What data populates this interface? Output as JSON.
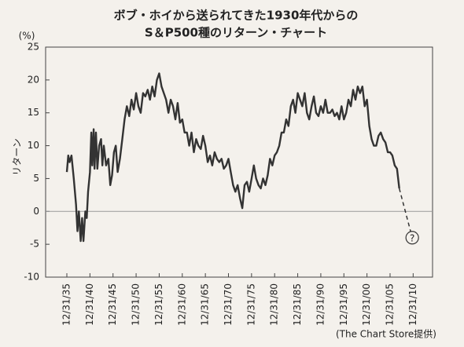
{
  "chart_data": {
    "type": "line",
    "title": "ボブ・ホイから送られてきた1930年代からの",
    "subtitle": "S＆P500種のリターン・チャート",
    "y_unit": "(%)",
    "y_label": "リターン",
    "source": "(The Chart Store提供)",
    "xlim": [
      1931.4,
      2015.2
    ],
    "ylim": [
      -10,
      25
    ],
    "yticks": [
      -10,
      -5,
      0,
      5,
      10,
      15,
      20,
      25
    ],
    "xticks": [
      {
        "value": 1936,
        "label": "12/31/35"
      },
      {
        "value": 1941,
        "label": "12/31/40"
      },
      {
        "value": 1946,
        "label": "12/31/45"
      },
      {
        "value": 1951,
        "label": "12/31/50"
      },
      {
        "value": 1956,
        "label": "12/31/55"
      },
      {
        "value": 1961,
        "label": "12/31/60"
      },
      {
        "value": 1966,
        "label": "12/31/65"
      },
      {
        "value": 1971,
        "label": "12/31/70"
      },
      {
        "value": 1976,
        "label": "12/31/75"
      },
      {
        "value": 1981,
        "label": "12/31/80"
      },
      {
        "value": 1986,
        "label": "12/31/85"
      },
      {
        "value": 1991,
        "label": "12/31/90"
      },
      {
        "value": 1996,
        "label": "12/31/95"
      },
      {
        "value": 2001,
        "label": "12/31/00"
      },
      {
        "value": 2006,
        "label": "12/31/05"
      },
      {
        "value": 2011,
        "label": "12/31/10"
      }
    ],
    "zero_line": true,
    "series": [
      {
        "color": "#333333",
        "dashed": false,
        "x": [
          1936,
          1936.3,
          1936.6,
          1937,
          1937.5,
          1938,
          1938.3,
          1938.6,
          1939,
          1939.3,
          1939.6,
          1940,
          1940.3,
          1940.6,
          1941,
          1941.3,
          1941.5,
          1941.8,
          1942,
          1942.3,
          1942.6,
          1943,
          1943.4,
          1943.7,
          1944,
          1944.5,
          1945,
          1945.4,
          1945.8,
          1946.2,
          1946.6,
          1947,
          1947.5,
          1948,
          1948.5,
          1949,
          1949.5,
          1950,
          1950.5,
          1951,
          1951.5,
          1952,
          1952.5,
          1953,
          1953.5,
          1954,
          1954.5,
          1955,
          1955.5,
          1956,
          1956.5,
          1957,
          1957.5,
          1958,
          1958.5,
          1959,
          1959.5,
          1960,
          1960.5,
          1961,
          1961.5,
          1962,
          1962.5,
          1963,
          1963.5,
          1964,
          1964.5,
          1965,
          1965.5,
          1966,
          1966.5,
          1967,
          1967.5,
          1968,
          1968.5,
          1969,
          1969.5,
          1970,
          1970.5,
          1971,
          1971.5,
          1972,
          1972.5,
          1973,
          1973.5,
          1974,
          1974.5,
          1975,
          1975.5,
          1976,
          1976.5,
          1977,
          1977.5,
          1978,
          1978.5,
          1979,
          1979.5,
          1980,
          1980.5,
          1981,
          1981.5,
          1982,
          1982.5,
          1983,
          1983.5,
          1984,
          1984.5,
          1985,
          1985.5,
          1986,
          1986.5,
          1987,
          1987.5,
          1988,
          1988.5,
          1989,
          1989.5,
          1990,
          1990.5,
          1991,
          1991.5,
          1992,
          1992.5,
          1993,
          1993.5,
          1994,
          1994.5,
          1995,
          1995.5,
          1996,
          1996.5,
          1997,
          1997.5,
          1998,
          1998.5,
          1999,
          1999.5,
          2000,
          2000.5,
          2001,
          2001.5,
          2002,
          2002.5,
          2003,
          2003.5,
          2004,
          2004.5,
          2005,
          2005.5,
          2006,
          2006.5,
          2007,
          2007.5,
          2008
        ],
        "values": [
          6,
          8.5,
          7.5,
          8.5,
          5,
          1,
          -3,
          0,
          -4.5,
          -1,
          -4.5,
          0,
          -1,
          3,
          6,
          12,
          7,
          12.5,
          6.5,
          12,
          6.5,
          10,
          11,
          7,
          10,
          7,
          8,
          4,
          5.5,
          9,
          10,
          6,
          8,
          11,
          14,
          16,
          14.5,
          17,
          15.5,
          18,
          16,
          15,
          18,
          17.5,
          18.5,
          17,
          19,
          17.5,
          20,
          21,
          19,
          18,
          17,
          15,
          17,
          16,
          14,
          16.5,
          13.5,
          14,
          12,
          12,
          10,
          12,
          9,
          11,
          10,
          9.5,
          11.5,
          10,
          7.5,
          8.5,
          7,
          9,
          8,
          7.5,
          8,
          6.5,
          7,
          8,
          6,
          4,
          3,
          4,
          2,
          0.5,
          4,
          4.5,
          3,
          5,
          7,
          5,
          4,
          3.5,
          5,
          4,
          5.5,
          8,
          7,
          8.5,
          9,
          10,
          12,
          12,
          14,
          13,
          16,
          17,
          15,
          18,
          17,
          16,
          18,
          15,
          14,
          16,
          17.5,
          15,
          14.5,
          16,
          15,
          17,
          15,
          15,
          15.5,
          14.5,
          15,
          14,
          16,
          14,
          15,
          17,
          16,
          18.5,
          17,
          19,
          18,
          19,
          16,
          17,
          13,
          11,
          10,
          10,
          11.5,
          12,
          11,
          10.5,
          9,
          9,
          8.5,
          7,
          6.5,
          3.5
        ]
      },
      {
        "color": "#333333",
        "dashed": true,
        "x": [
          2008,
          2010.8
        ],
        "values": [
          3.5,
          -4
        ]
      }
    ],
    "annotations": [
      {
        "text": "?",
        "x": 2010.8,
        "y": -4
      }
    ]
  }
}
